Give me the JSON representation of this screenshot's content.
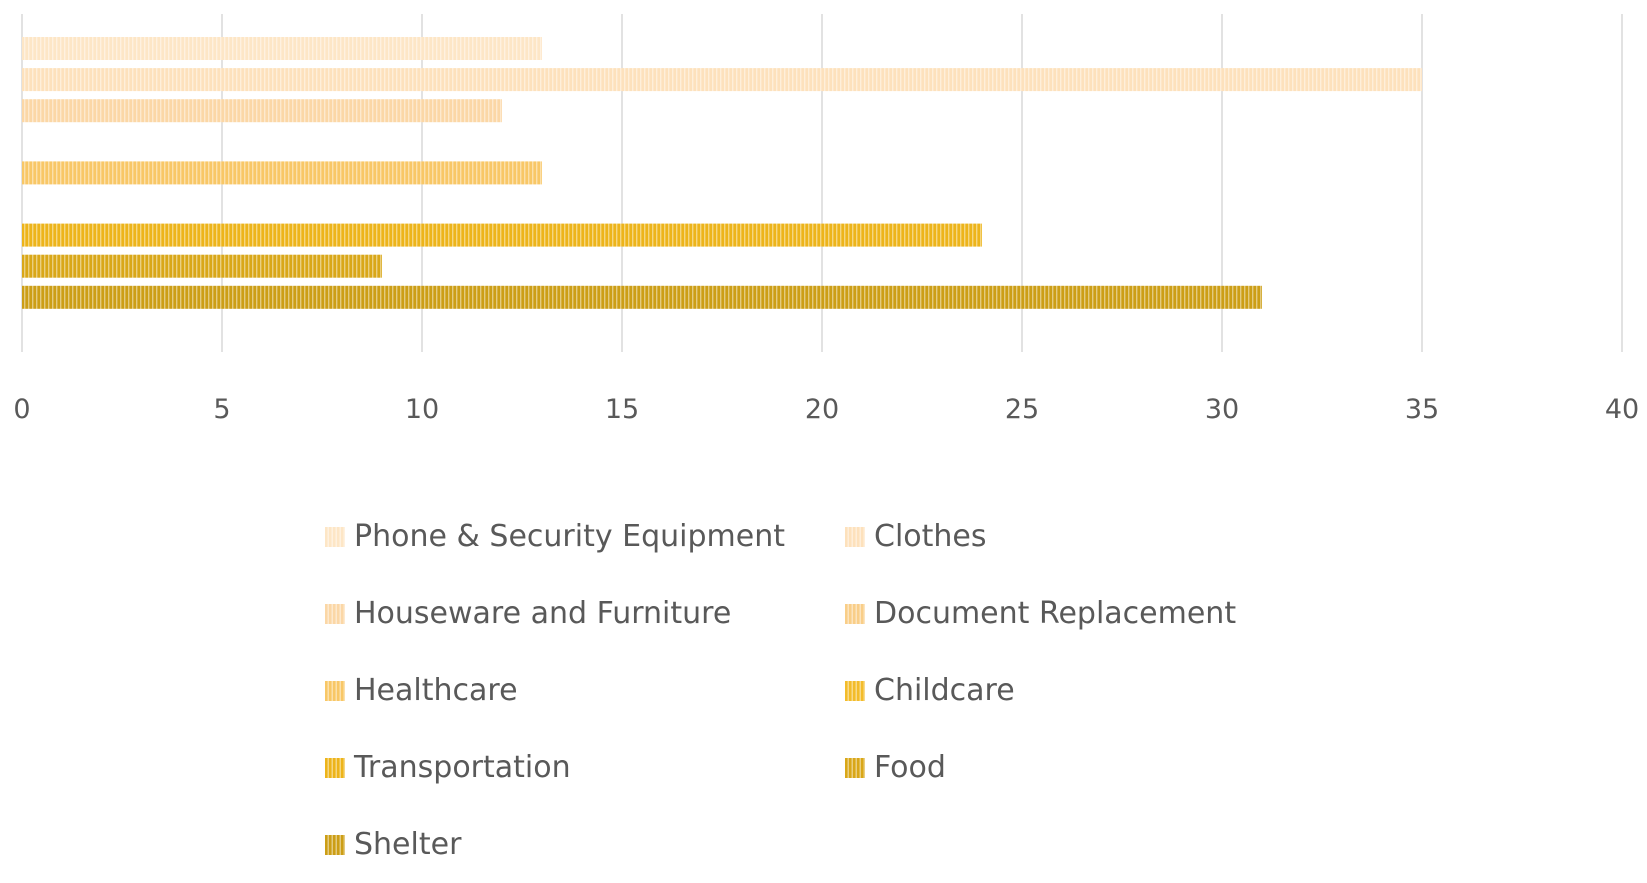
{
  "chart_data": {
    "type": "bar",
    "orientation": "horizontal",
    "series": [
      {
        "name": "Phone & Security Equipment",
        "value": 13,
        "color": "#FDE6C6"
      },
      {
        "name": "Clothes",
        "value": 35,
        "color": "#FDE1BC"
      },
      {
        "name": "Houseware and Furniture",
        "value": 12,
        "color": "#FBD7A6"
      },
      {
        "name": "Document Replacement",
        "value": 0,
        "color": "#F9CE88"
      },
      {
        "name": "Healthcare",
        "value": 13,
        "color": "#F8C766"
      },
      {
        "name": "Childcare",
        "value": 0,
        "color": "#F3BC2A"
      },
      {
        "name": "Transportation",
        "value": 24,
        "color": "#EDB41A"
      },
      {
        "name": "Food",
        "value": 9,
        "color": "#D9A718"
      },
      {
        "name": "Shelter",
        "value": 31,
        "color": "#CC9E16"
      }
    ],
    "xlim": [
      0,
      40
    ],
    "x_ticks": [
      "0",
      "5",
      "10",
      "15",
      "20",
      "25",
      "30",
      "35",
      "40"
    ],
    "grid": true,
    "legend_position": "bottom",
    "bar_pattern": "vertical-stripes"
  }
}
